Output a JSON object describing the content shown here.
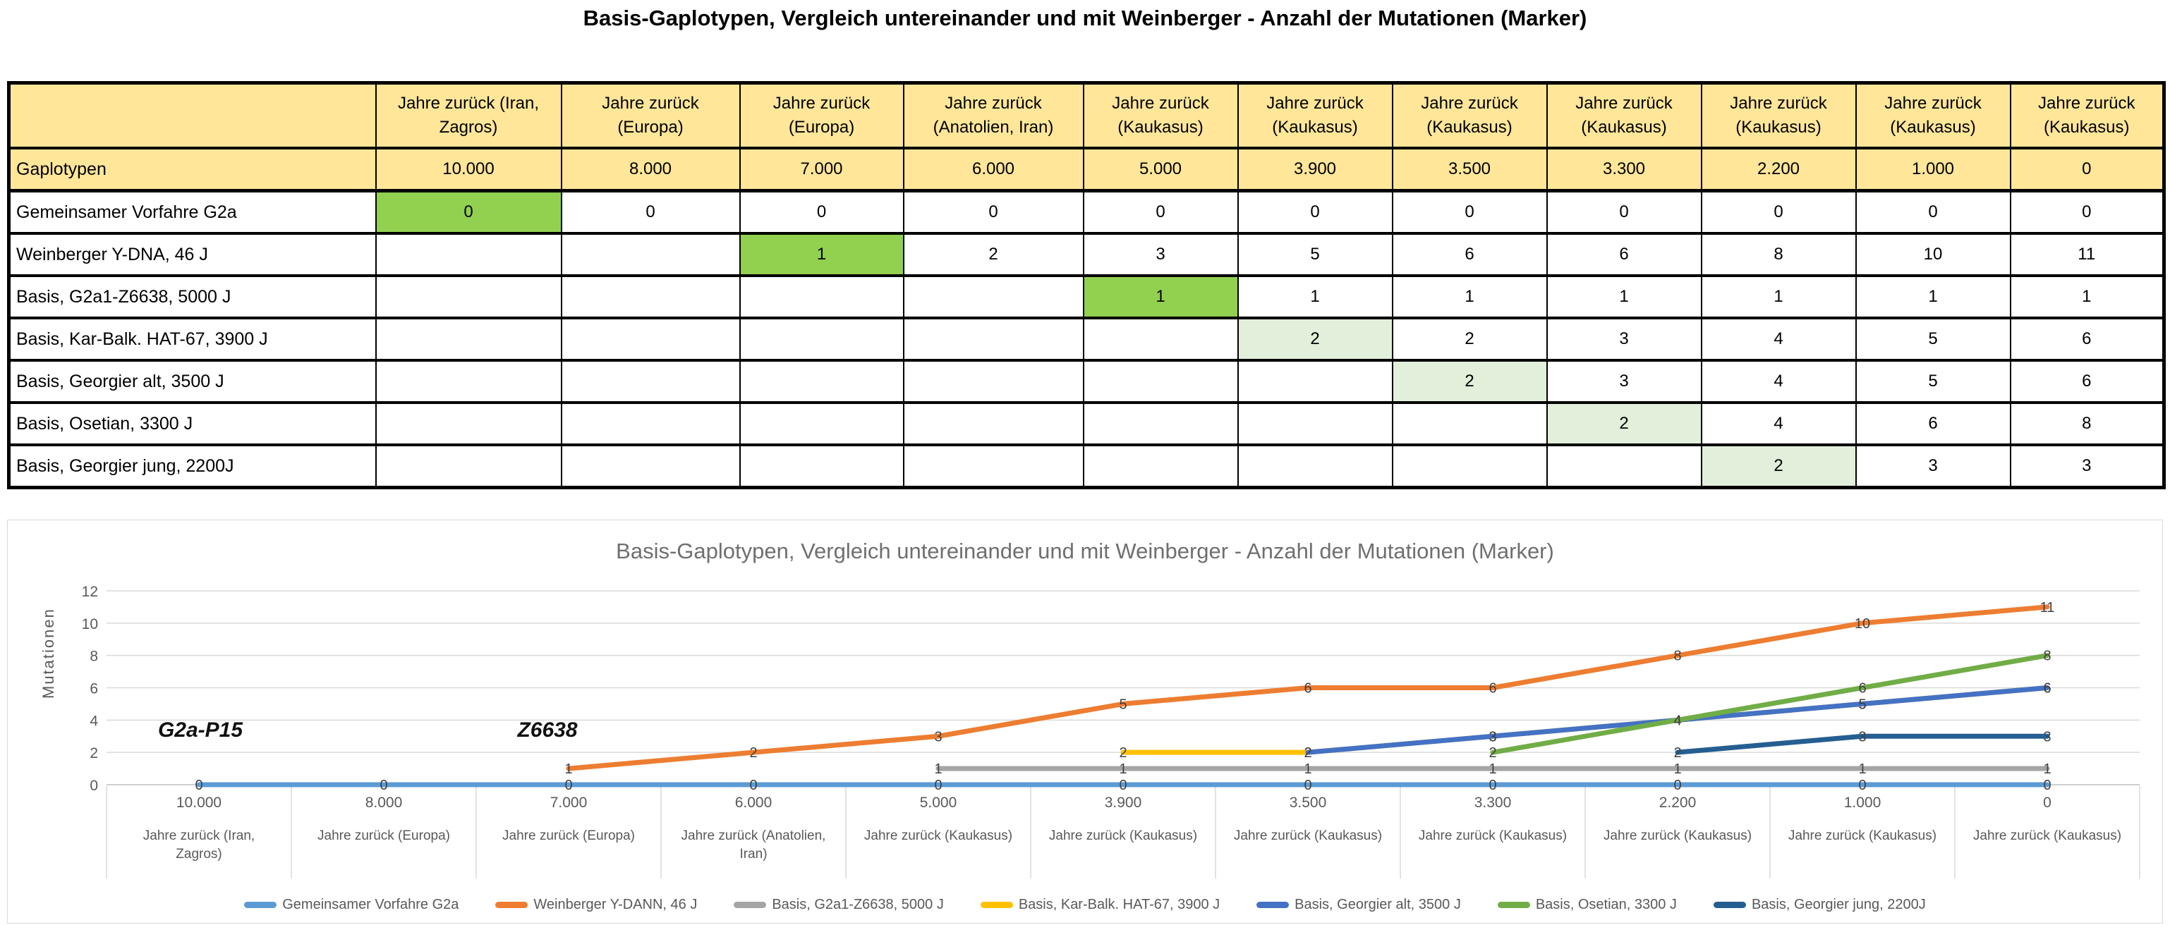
{
  "page_title": "Basis-Gaplotypen, Vergleich untereinander und mit Weinberger - Anzahl der Mutationen (Marker)",
  "table": {
    "corner_label": "",
    "col_headers": [
      "Jahre zurück  (Iran,\nZagros)",
      "Jahre  zurück\n(Europa)",
      "Jahre zurück\n(Europa)",
      "Jahre zurück\n(Anatolien, Iran)",
      "Jahre zurück\n(Kaukasus)",
      "Jahre zurück\n(Kaukasus)",
      "Jahre zurück\n(Kaukasus)",
      "Jahre zurück\n(Kaukasus)",
      "Jahre zurück\n(Kaukasus)",
      "Jahre zurück\n(Kaukasus)",
      "Jahre zurück\n(Kaukasus)"
    ],
    "years_row": {
      "label": "Gaplotypen",
      "values": [
        "10.000",
        "8.000",
        "7.000",
        "6.000",
        "5.000",
        "3.900",
        "3.500",
        "3.300",
        "2.200",
        "1.000",
        "0"
      ]
    },
    "rows": [
      {
        "label": "Gemeinsamer Vorfahre G2a",
        "cells": [
          {
            "v": "0",
            "hl": "green"
          },
          "0",
          "0",
          "0",
          "0",
          "0",
          "0",
          "0",
          "0",
          "0",
          "0"
        ]
      },
      {
        "label": "Weinberger Y-DNA, 46 J",
        "cells": [
          "",
          "",
          {
            "v": "1",
            "hl": "green"
          },
          "2",
          "3",
          "5",
          "6",
          "6",
          "8",
          "10",
          "11"
        ]
      },
      {
        "label": "Basis, G2a1-Z6638,  5000 J",
        "cells": [
          "",
          "",
          "",
          "",
          {
            "v": "1",
            "hl": "green"
          },
          "1",
          "1",
          "1",
          "1",
          "1",
          "1"
        ]
      },
      {
        "label": "Basis, Kar-Balk. HAT-67, 3900 J",
        "cells": [
          "",
          "",
          "",
          "",
          "",
          {
            "v": "2",
            "hl": "light"
          },
          "2",
          "3",
          "4",
          "5",
          "6"
        ]
      },
      {
        "label": "Basis, Georgier alt, 3500 J",
        "cells": [
          "",
          "",
          "",
          "",
          "",
          "",
          {
            "v": "2",
            "hl": "light"
          },
          "3",
          "4",
          "5",
          "6"
        ]
      },
      {
        "label": "Basis, Osetian, 3300 J",
        "cells": [
          "",
          "",
          "",
          "",
          "",
          "",
          "",
          {
            "v": "2",
            "hl": "light"
          },
          "4",
          "6",
          "8"
        ]
      },
      {
        "label": "Basis, Georgier jung, 2200J",
        "cells": [
          "",
          "",
          "",
          "",
          "",
          "",
          "",
          "",
          {
            "v": "2",
            "hl": "light"
          },
          "3",
          "3"
        ]
      }
    ],
    "colors": {
      "header_bg": "#FFE699",
      "highlight_green": "#92D050",
      "highlight_light_green": "#E2EFDA"
    }
  },
  "chart_data": {
    "type": "line",
    "title": "Basis-Gaplotypen, Vergleich untereinander und mit Weinberger - Anzahl der Mutationen (Marker)",
    "ylabel": "Mutationen",
    "ylim": [
      0,
      12
    ],
    "yticks": [
      0,
      2,
      4,
      6,
      8,
      10,
      12
    ],
    "grid": true,
    "legend_position": "bottom",
    "categories": [
      {
        "value": "10.000",
        "region": "Jahre zurück  (Iran,\nZagros)"
      },
      {
        "value": "8.000",
        "region": "Jahre  zurück   (Europa)"
      },
      {
        "value": "7.000",
        "region": "Jahre zurück  (Europa)"
      },
      {
        "value": "6.000",
        "region": "Jahre zurück  (Anatolien,\nIran)"
      },
      {
        "value": "5.000",
        "region": "Jahre zurück (Kaukasus)"
      },
      {
        "value": "3.900",
        "region": "Jahre zurück (Kaukasus)"
      },
      {
        "value": "3.500",
        "region": "Jahre zurück (Kaukasus)"
      },
      {
        "value": "3.300",
        "region": "Jahre zurück (Kaukasus)"
      },
      {
        "value": "2.200",
        "region": "Jahre zurück (Kaukasus)"
      },
      {
        "value": "1.000",
        "region": "Jahre zurück (Kaukasus)"
      },
      {
        "value": "0",
        "region": "Jahre zurück (Kaukasus)"
      }
    ],
    "series": [
      {
        "name": "Gemeinsamer Vorfahre G2a",
        "color": "#5B9BD5",
        "values": [
          0,
          0,
          0,
          0,
          0,
          0,
          0,
          0,
          0,
          0,
          0
        ]
      },
      {
        "name": "Weinberger Y-DANN, 46 J",
        "color": "#ED7D31",
        "values": [
          null,
          null,
          1,
          2,
          3,
          5,
          6,
          6,
          8,
          10,
          11
        ]
      },
      {
        "name": "Basis, G2a1-Z6638,  5000 J",
        "color": "#A5A5A5",
        "values": [
          null,
          null,
          null,
          null,
          1,
          1,
          1,
          1,
          1,
          1,
          1
        ]
      },
      {
        "name": "Basis, Kar-Balk. HAT-67, 3900 J",
        "color": "#FFC000",
        "values": [
          null,
          null,
          null,
          null,
          null,
          2,
          2,
          3,
          4,
          5,
          6
        ]
      },
      {
        "name": "Basis, Georgier alt, 3500 J",
        "color": "#4472C4",
        "values": [
          null,
          null,
          null,
          null,
          null,
          null,
          2,
          3,
          4,
          5,
          6
        ]
      },
      {
        "name": "Basis, Osetian, 3300 J",
        "color": "#70AD47",
        "values": [
          null,
          null,
          null,
          null,
          null,
          null,
          null,
          2,
          4,
          6,
          8
        ]
      },
      {
        "name": "Basis, Georgier jung, 2200J",
        "color": "#255E91",
        "values": [
          null,
          null,
          null,
          null,
          null,
          null,
          null,
          null,
          2,
          3,
          3
        ]
      }
    ],
    "annotations": [
      {
        "text": "G2a-P15",
        "x_index": 0,
        "dx": -18,
        "y": 3.27
      },
      {
        "text": "Z6638",
        "x_index": 2,
        "dx": -50,
        "y": 3.27
      }
    ]
  }
}
